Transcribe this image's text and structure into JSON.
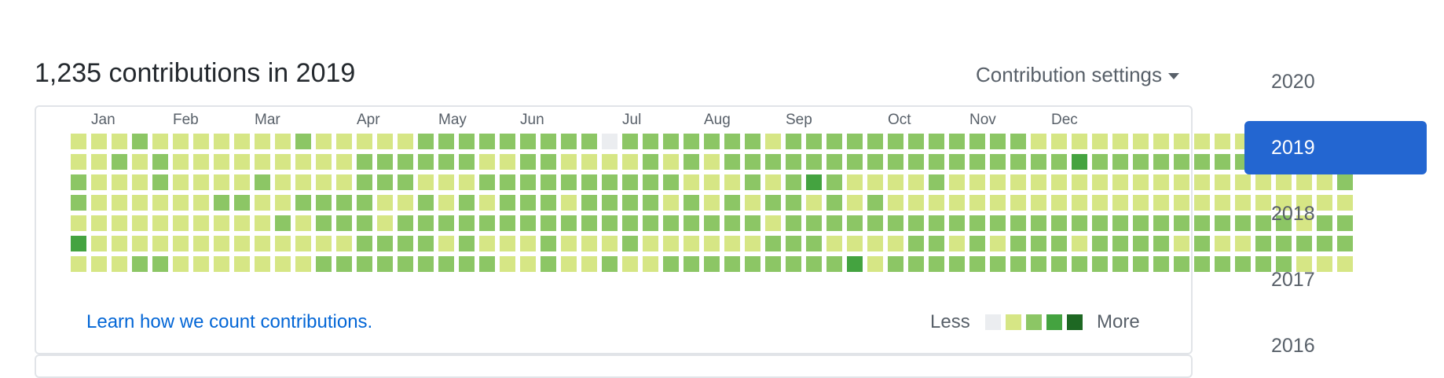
{
  "heading": "1,235 contributions in 2019",
  "settings_label": "Contribution settings",
  "months": [
    "Jan",
    "Feb",
    "Mar",
    "Apr",
    "May",
    "Jun",
    "Jul",
    "Aug",
    "Sep",
    "Oct",
    "Nov",
    "Dec"
  ],
  "levels": [
    "#ebedf0",
    "#d6e685",
    "#8cc665",
    "#44a340",
    "#1e6823"
  ],
  "contribution_grid": [
    "111211111112111112222222220222222212222222222221111111111111111",
    "112121111111112222221122111121212222222222222222232222222222222",
    "211121111211112221112222222222111212321111211111111111111111112",
    "211111122112222112121222122221212122121211111111111111111111111",
    "111111111121222122222222222222222212222222222222222222222222122",
    "311111111111112222121112111211111122211112212122212222121122222",
    "111221111111222222222112112112222222223122222222222222222222111"
  ],
  "learn_link": "Learn how we count contributions.",
  "legend": {
    "less": "Less",
    "more": "More"
  },
  "years": [
    "2020",
    "2019",
    "2018",
    "2017",
    "2016"
  ],
  "selected_year": "2019"
}
